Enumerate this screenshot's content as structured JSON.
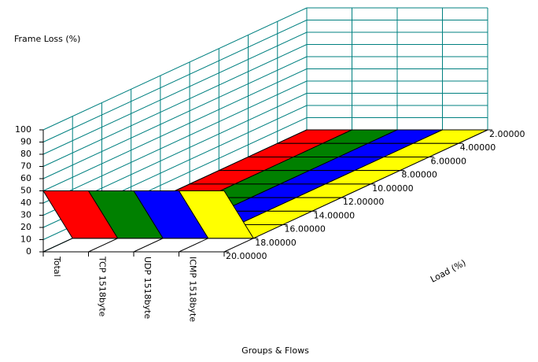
{
  "chart_data": {
    "type": "surface3d",
    "title": "Frame Loss (%)",
    "x_label": "Groups & Flows",
    "load_label": "Load (%)",
    "categories": [
      "Total",
      "TCP 1518byte",
      "UDP 1518byte",
      "ICMP 1518byte"
    ],
    "x": [
      2,
      4,
      6,
      8,
      10,
      12,
      14,
      16,
      18,
      20
    ],
    "xlim": [
      20,
      2
    ],
    "xticks": [
      {
        "value": 2,
        "label": "2.00000"
      },
      {
        "value": 4,
        "label": "4.00000"
      },
      {
        "value": 6,
        "label": "6.00000"
      },
      {
        "value": 8,
        "label": "8.00000"
      },
      {
        "value": 10,
        "label": "10.00000"
      },
      {
        "value": 12,
        "label": "12.00000"
      },
      {
        "value": 14,
        "label": "14.00000"
      },
      {
        "value": 16,
        "label": "16.00000"
      },
      {
        "value": 18,
        "label": "18.00000"
      },
      {
        "value": 20,
        "label": "20.00000"
      }
    ],
    "zlim": [
      0,
      100
    ],
    "zticks": [
      0,
      10,
      20,
      30,
      40,
      50,
      60,
      70,
      80,
      90,
      100
    ],
    "series": [
      {
        "name": "Total",
        "color": "#ff0000",
        "values": [
          0,
          0,
          0,
          0,
          0,
          0,
          0,
          0,
          0,
          50
        ]
      },
      {
        "name": "TCP 1518byte",
        "color": "#008000",
        "values": [
          0,
          0,
          0,
          0,
          0,
          0,
          0,
          0,
          0,
          50
        ]
      },
      {
        "name": "UDP 1518byte",
        "color": "#0000ff",
        "values": [
          0,
          0,
          0,
          0,
          0,
          0,
          0,
          0,
          0,
          50
        ]
      },
      {
        "name": "ICMP 1518byte",
        "color": "#ffff00",
        "values": [
          0,
          0,
          0,
          0,
          0,
          0,
          0,
          0,
          0,
          50
        ]
      }
    ]
  }
}
